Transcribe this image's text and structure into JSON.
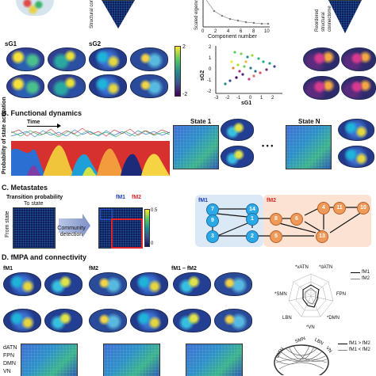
{
  "panelA": {
    "structural_connectome": "Structural connectome",
    "scaled_eigenvalue": "Scaled eigenvalue",
    "component_number": "Component number",
    "component_ticks": [
      "0",
      "2",
      "4",
      "6",
      "8",
      "10"
    ],
    "reordered_connectome": "Reordered structural connectome",
    "sG1": "sG1",
    "sG2": "sG2",
    "colorbar_max": "2",
    "colorbar_min": "-2",
    "scatter_xlabel": "sG1",
    "scatter_ylabel": "sG2",
    "scatter_xticks": [
      "-3",
      "-2",
      "-1",
      "0",
      "1",
      "2"
    ],
    "scatter_yticks": [
      "2",
      "1",
      "0",
      "-1",
      "-2"
    ]
  },
  "panelB": {
    "title": "B. Functional dynamics",
    "time": "Time",
    "ylabel": "Probability of state activation",
    "state1": "State 1",
    "stateN": "State N",
    "ellipsis": "• • •"
  },
  "panelC": {
    "title": "C. Metastates",
    "transition": "Transition probability",
    "to_state": "To state",
    "from_state": "From state",
    "community": "Community detection",
    "fM1": "fM1",
    "fM2": "fM2",
    "cb_max": "0.5",
    "cb_min": "0",
    "nodes_blue": [
      "7",
      "14",
      "9",
      "1",
      "3",
      "2"
    ],
    "nodes_orange": [
      "8",
      "6",
      "4",
      "11",
      "10",
      "5",
      "13"
    ]
  },
  "panelD": {
    "title": "D. fMPA and connectivity",
    "fM1": "fM1",
    "fM2": "fM2",
    "diff": "fM1 – fM2",
    "networks_left": [
      "dATN",
      "FPN",
      "DMN",
      "VN"
    ],
    "radar_labels": [
      "*vATN",
      "*dATN",
      "FPN",
      "*DMN",
      "*VN",
      "LBN",
      "*SMN"
    ],
    "legend": [
      "fM1",
      "fM2"
    ],
    "legend2": [
      "fM1 > fM2",
      "fM1 < fM2"
    ],
    "circle_labels": [
      "SMN",
      "LBN",
      "VN",
      "vATN"
    ]
  },
  "colors": {
    "blue_bg": "#dbe9f7",
    "orange_bg": "#fbe2d2",
    "red_box": "#e0262b",
    "blue_node": "#2aa9e6",
    "orange_node": "#f09a59"
  }
}
